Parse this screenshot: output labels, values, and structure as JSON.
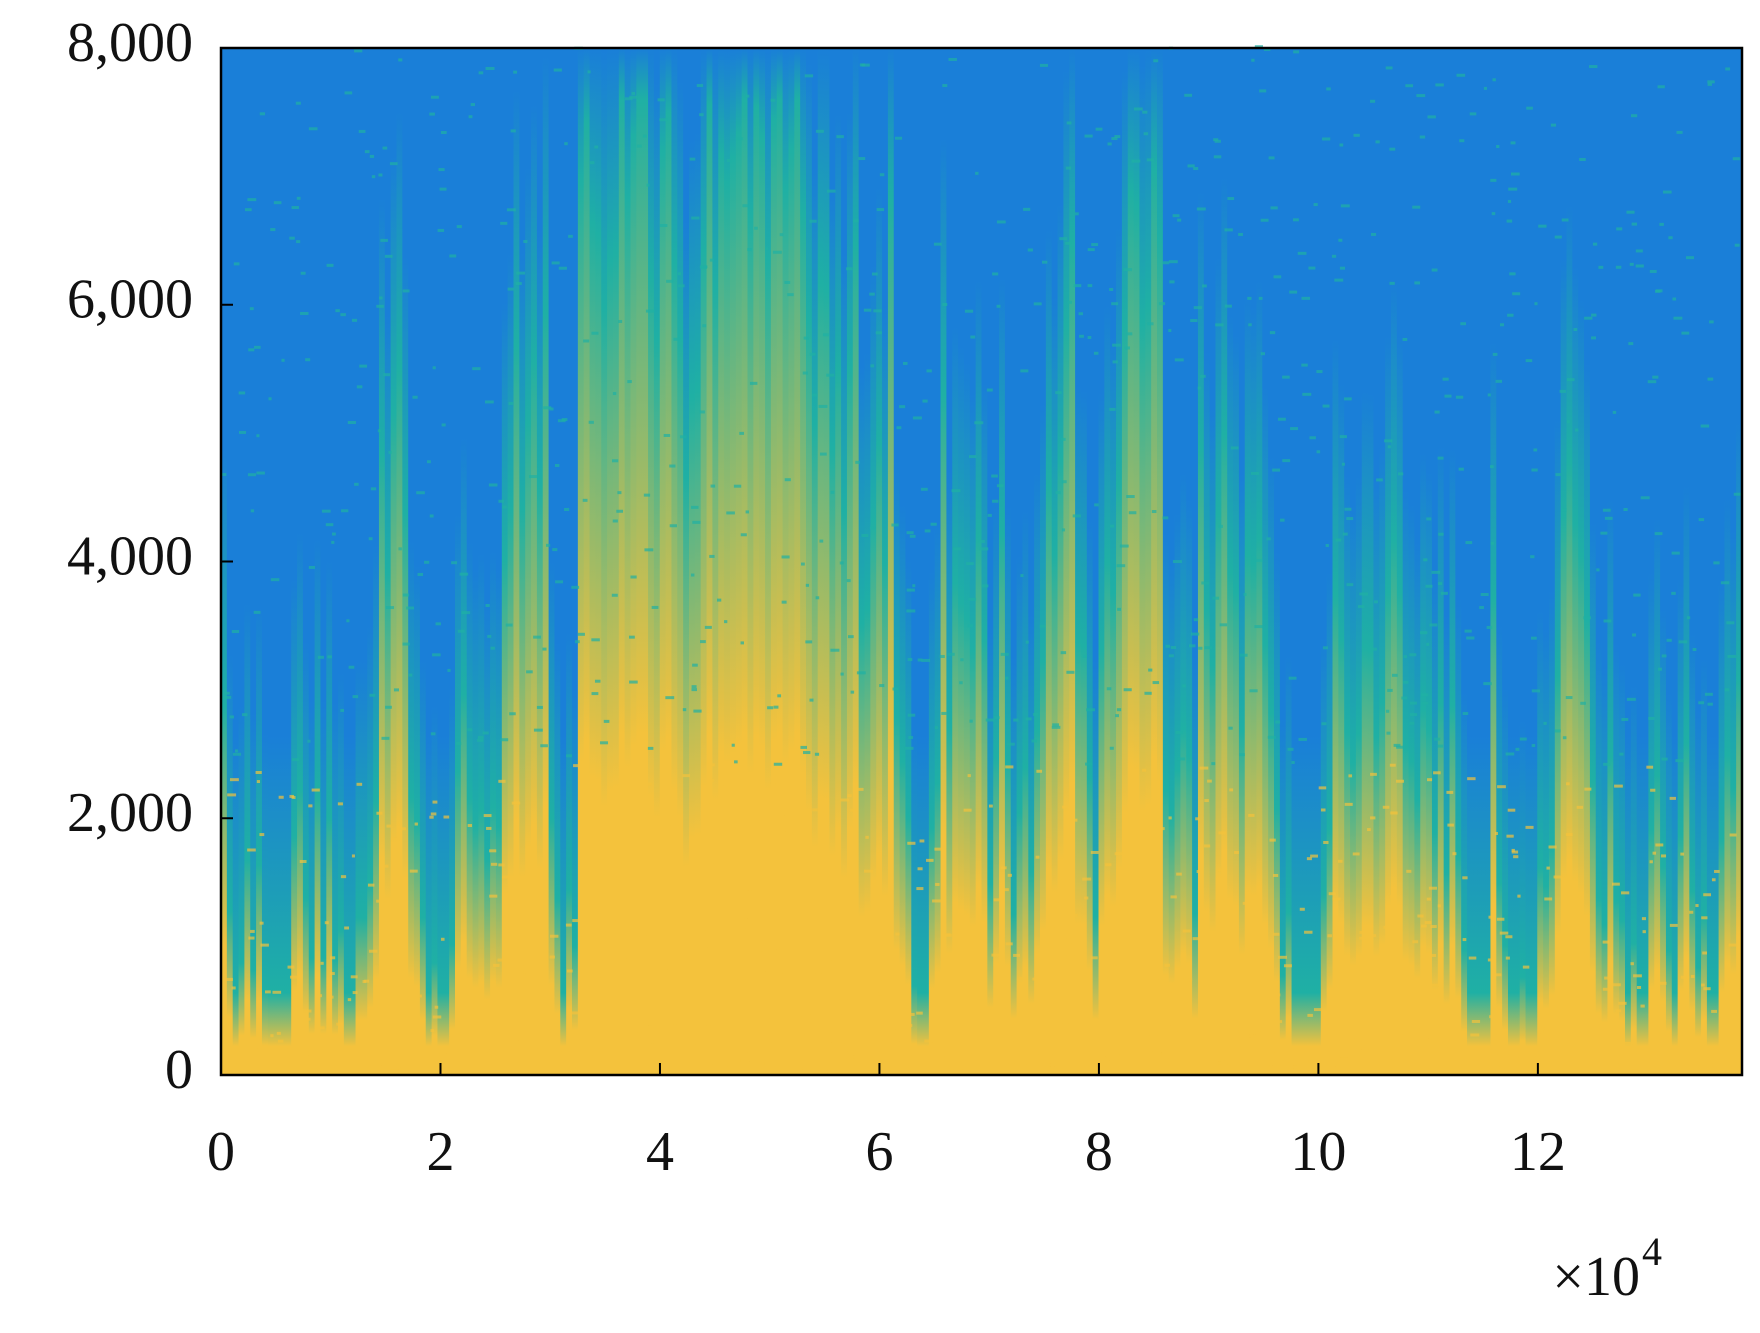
{
  "chart_data": {
    "type": "spectrogram",
    "xlim": [
      0,
      13.86
    ],
    "xticks": [
      0,
      2,
      4,
      6,
      8,
      10,
      12
    ],
    "ylim": [
      0,
      8000
    ],
    "yticks": [
      0,
      {
        "value": 2000,
        "label": "2,000"
      },
      {
        "value": 4000,
        "label": "4,000"
      },
      {
        "value": 6000,
        "label": "6,000"
      },
      {
        "value": 8000,
        "label": "8,000"
      }
    ],
    "x_scale_label": {
      "base": "×10",
      "exponent": "4"
    },
    "colormap": [
      "#1a7fd8",
      "#1fb0a4",
      "#f4c23c"
    ]
  }
}
